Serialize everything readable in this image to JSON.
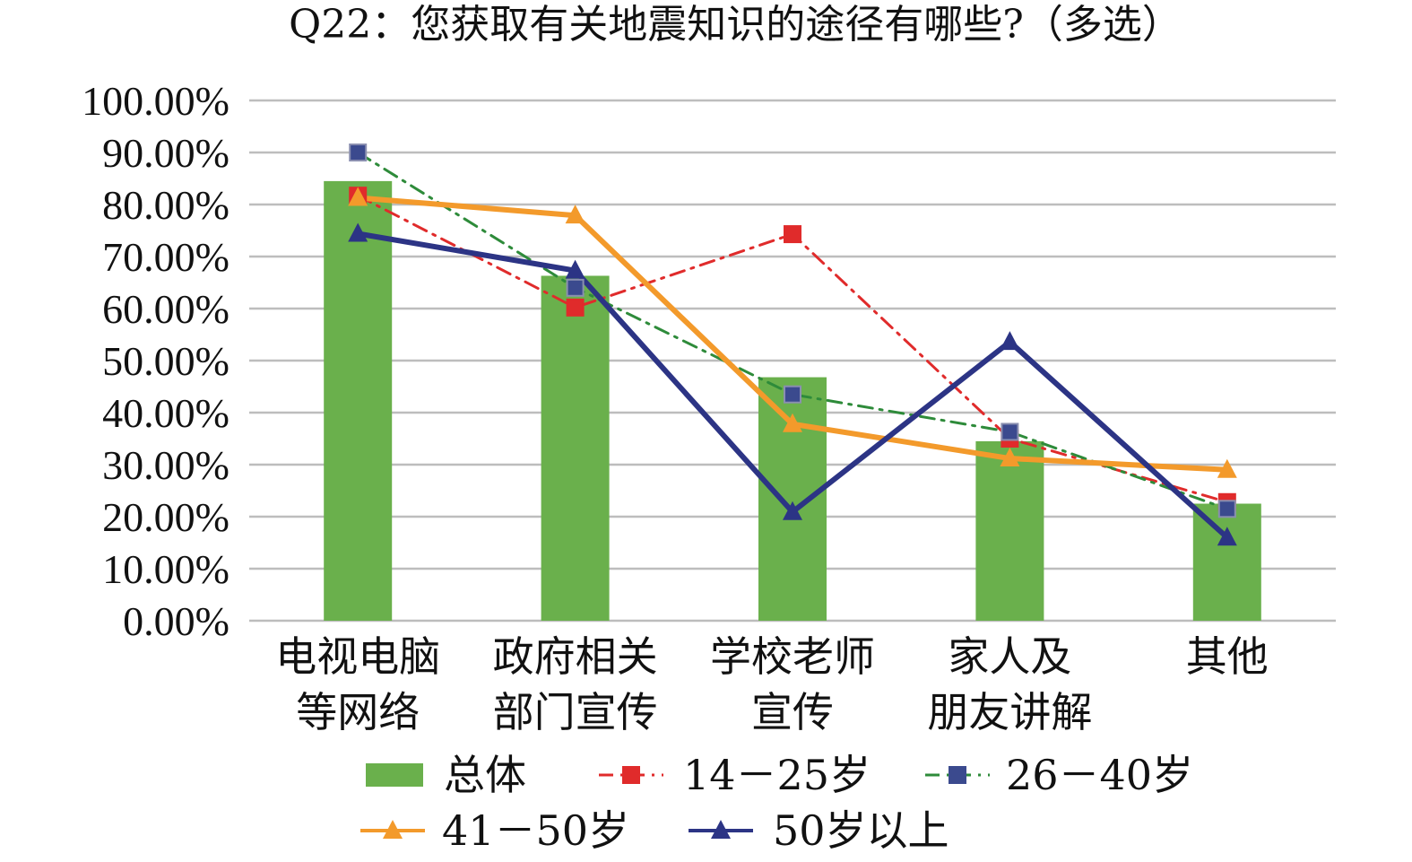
{
  "chart_data": {
    "type": "bar",
    "title": "Q22：您获取有关地震知识的途径有哪些?（多选）",
    "categories": [
      [
        "电视电脑",
        "等网络"
      ],
      [
        "政府相关",
        "部门宣传"
      ],
      [
        "学校老师",
        "宣传"
      ],
      [
        "家人及",
        "朋友讲解"
      ],
      [
        "其他"
      ]
    ],
    "ylim": [
      0,
      100
    ],
    "yticks": [
      "0.00%",
      "10.00%",
      "20.00%",
      "30.00%",
      "40.00%",
      "50.00%",
      "60.00%",
      "70.00%",
      "80.00%",
      "90.00%",
      "100.00%"
    ],
    "grid": true,
    "legend_position": "bottom",
    "series": [
      {
        "name": "总体",
        "type": "bar",
        "color": "#6ab04c",
        "values": [
          84.5,
          66.3,
          46.8,
          34.5,
          22.5
        ]
      },
      {
        "name": "14－25岁",
        "type": "line",
        "color": "#e02b2b",
        "dash": "dash-dot",
        "marker": "square",
        "values": [
          81.7,
          60.2,
          74.3,
          35.0,
          22.8
        ]
      },
      {
        "name": "26－40岁",
        "type": "line",
        "color": "#2e8b3a",
        "dash": "dash-dot",
        "marker": "square",
        "marker_color": "#3b4a8e",
        "values": [
          90.0,
          64.0,
          43.5,
          36.3,
          21.5
        ]
      },
      {
        "name": "41－50岁",
        "type": "line",
        "color": "#f39a2b",
        "dash": "solid",
        "marker": "triangle",
        "values": [
          81.3,
          77.9,
          37.8,
          31.2,
          29.0
        ]
      },
      {
        "name": "50岁以上",
        "type": "line",
        "color": "#2c3485",
        "dash": "solid",
        "marker": "triangle",
        "values": [
          74.4,
          67.3,
          20.9,
          53.6,
          16.0
        ]
      }
    ]
  }
}
